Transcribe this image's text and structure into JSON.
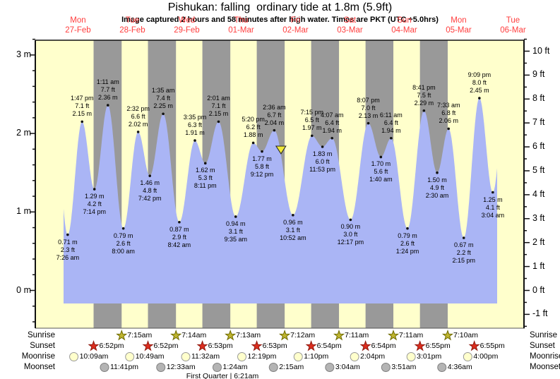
{
  "header": {
    "title": "Pishukan: falling  ordinary tide at 1.8m (5.9ft)",
    "subtitle": "Image captured 2 hours and 58 minutes after high water. Times are PKT (UTC +5.0hrs)"
  },
  "days": [
    {
      "name": "Mon",
      "date": "27-Feb"
    },
    {
      "name": "Tue",
      "date": "28-Feb"
    },
    {
      "name": "Wed",
      "date": "29-Feb"
    },
    {
      "name": "Thu",
      "date": "01-Mar"
    },
    {
      "name": "Fri",
      "date": "02-Mar"
    },
    {
      "name": "Sat",
      "date": "03-Mar"
    },
    {
      "name": "Sun",
      "date": "04-Mar"
    },
    {
      "name": "Mon",
      "date": "05-Mar"
    },
    {
      "name": "Tue",
      "date": "06-Mar"
    }
  ],
  "axes": {
    "left_ticks": [
      {
        "m": 3,
        "label": "3 m"
      },
      {
        "m": 2,
        "label": "2 m"
      },
      {
        "m": 1,
        "label": "1 m"
      },
      {
        "m": 0,
        "label": "0 m"
      }
    ],
    "right_ticks": [
      {
        "ft": 10,
        "label": "10 ft"
      },
      {
        "ft": 9,
        "label": "9 ft"
      },
      {
        "ft": 8,
        "label": "8 ft"
      },
      {
        "ft": 7,
        "label": "7 ft"
      },
      {
        "ft": 6,
        "label": "6 ft"
      },
      {
        "ft": 5,
        "label": "5 ft"
      },
      {
        "ft": 4,
        "label": "4 ft"
      },
      {
        "ft": 3,
        "label": "3 ft"
      },
      {
        "ft": 2,
        "label": "2 ft"
      },
      {
        "ft": 1,
        "label": "1 ft"
      },
      {
        "ft": 0,
        "label": "0 ft"
      },
      {
        "ft": -1,
        "label": "-1 ft"
      }
    ]
  },
  "chart_data": {
    "type": "area",
    "title": "Pishukan: falling  ordinary tide at 1.8m (5.9ft)",
    "series_name": "tide height",
    "units": [
      "m",
      "ft"
    ],
    "ylim_m": [
      -0.5,
      3.2
    ],
    "tide_points": [
      {
        "day": 0,
        "time": "7:26 am",
        "kind": "low",
        "m": 0.71,
        "m_label": "0.71 m",
        "ft_label": "2.3 ft"
      },
      {
        "day": 0,
        "time": "1:47 pm",
        "kind": "high",
        "m": 2.15,
        "m_label": "2.15 m",
        "ft_label": "7.1 ft"
      },
      {
        "day": 0,
        "time": "7:14 pm",
        "kind": "low",
        "m": 1.29,
        "m_label": "1.29 m",
        "ft_label": "4.2 ft"
      },
      {
        "day": 1,
        "time": "1:11 am",
        "kind": "high",
        "m": 2.36,
        "m_label": "2.36 m",
        "ft_label": "7.7 ft"
      },
      {
        "day": 1,
        "time": "8:00 am",
        "kind": "low",
        "m": 0.79,
        "m_label": "0.79 m",
        "ft_label": "2.6 ft"
      },
      {
        "day": 1,
        "time": "2:32 pm",
        "kind": "high",
        "m": 2.02,
        "m_label": "2.02 m",
        "ft_label": "6.6 ft"
      },
      {
        "day": 1,
        "time": "7:42 pm",
        "kind": "low",
        "m": 1.46,
        "m_label": "1.46 m",
        "ft_label": "4.8 ft"
      },
      {
        "day": 2,
        "time": "1:35 am",
        "kind": "high",
        "m": 2.25,
        "m_label": "2.25 m",
        "ft_label": "7.4 ft"
      },
      {
        "day": 2,
        "time": "8:42 am",
        "kind": "low",
        "m": 0.87,
        "m_label": "0.87 m",
        "ft_label": "2.9 ft"
      },
      {
        "day": 2,
        "time": "3:35 pm",
        "kind": "high",
        "m": 1.91,
        "m_label": "1.91 m",
        "ft_label": "6.3 ft"
      },
      {
        "day": 2,
        "time": "8:11 pm",
        "kind": "low",
        "m": 1.62,
        "m_label": "1.62 m",
        "ft_label": "5.3 ft"
      },
      {
        "day": 3,
        "time": "2:01 am",
        "kind": "high",
        "m": 2.15,
        "m_label": "2.15 m",
        "ft_label": "7.1 ft"
      },
      {
        "day": 3,
        "time": "9:35 am",
        "kind": "low",
        "m": 0.94,
        "m_label": "0.94 m",
        "ft_label": "3.1 ft"
      },
      {
        "day": 3,
        "time": "5:20 pm",
        "kind": "high",
        "m": 1.88,
        "m_label": "1.88 m",
        "ft_label": "6.2 ft"
      },
      {
        "day": 3,
        "time": "9:12 pm",
        "kind": "low",
        "m": 1.77,
        "m_label": "1.77 m",
        "ft_label": "5.8 ft"
      },
      {
        "day": 4,
        "time": "2:36 am",
        "kind": "high",
        "m": 2.04,
        "m_label": "2.04 m",
        "ft_label": "6.7 ft"
      },
      {
        "day": 4,
        "time": "10:52 am",
        "kind": "low",
        "m": 0.96,
        "m_label": "0.96 m",
        "ft_label": "3.1 ft"
      },
      {
        "day": 4,
        "time": "7:15 pm",
        "kind": "high",
        "m": 1.97,
        "m_label": "1.97 m",
        "ft_label": "6.5 ft"
      },
      {
        "day": 4,
        "time": "11:53 pm",
        "kind": "low",
        "m": 1.83,
        "m_label": "1.83 m",
        "ft_label": "6.0 ft"
      },
      {
        "day": 5,
        "time": "4:07 am",
        "kind": "high",
        "m": 1.94,
        "m_label": "1.94 m",
        "ft_label": "6.4 ft"
      },
      {
        "day": 5,
        "time": "12:17 pm",
        "kind": "low",
        "m": 0.9,
        "m_label": "0.90 m",
        "ft_label": "3.0 ft"
      },
      {
        "day": 5,
        "time": "8:07 pm",
        "kind": "high",
        "m": 2.13,
        "m_label": "2.13 m",
        "ft_label": "7.0 ft"
      },
      {
        "day": 6,
        "time": "1:40 am",
        "kind": "low",
        "m": 1.7,
        "m_label": "1.70 m",
        "ft_label": "5.6 ft"
      },
      {
        "day": 6,
        "time": "6:11 am",
        "kind": "high",
        "m": 1.94,
        "m_label": "1.94 m",
        "ft_label": "6.4 ft"
      },
      {
        "day": 6,
        "time": "1:24 pm",
        "kind": "low",
        "m": 0.79,
        "m_label": "0.79 m",
        "ft_label": "2.6 ft"
      },
      {
        "day": 6,
        "time": "8:41 pm",
        "kind": "high",
        "m": 2.29,
        "m_label": "2.29 m",
        "ft_label": "7.5 ft"
      },
      {
        "day": 7,
        "time": "2:30 am",
        "kind": "low",
        "m": 1.5,
        "m_label": "1.50 m",
        "ft_label": "4.9 ft"
      },
      {
        "day": 7,
        "time": "7:33 am",
        "kind": "high",
        "m": 2.06,
        "m_label": "2.06 m",
        "ft_label": "6.8 ft"
      },
      {
        "day": 7,
        "time": "2:15 pm",
        "kind": "low",
        "m": 0.67,
        "m_label": "0.67 m",
        "ft_label": "2.2 ft"
      },
      {
        "day": 7,
        "time": "9:09 pm",
        "kind": "high",
        "m": 2.45,
        "m_label": "2.45 m",
        "ft_label": "8.0 ft"
      },
      {
        "day": 8,
        "time": "3:04 am",
        "kind": "low",
        "m": 1.25,
        "m_label": "1.25 m",
        "ft_label": "4.1 ft"
      }
    ],
    "current_marker": {
      "shape": "triangle-down",
      "day": 4,
      "time": "5:34 am"
    }
  },
  "almanac": {
    "row_labels": [
      "Sunrise",
      "Sunset",
      "Moonrise",
      "Moonset"
    ],
    "sunrise": [
      {
        "day": 1,
        "time": "7:15am"
      },
      {
        "day": 2,
        "time": "7:14am"
      },
      {
        "day": 3,
        "time": "7:13am"
      },
      {
        "day": 4,
        "time": "7:12am"
      },
      {
        "day": 5,
        "time": "7:11am"
      },
      {
        "day": 6,
        "time": "7:11am"
      },
      {
        "day": 7,
        "time": "7:10am"
      }
    ],
    "sunset": [
      {
        "day": 0,
        "time": "6:52pm"
      },
      {
        "day": 1,
        "time": "6:52pm"
      },
      {
        "day": 2,
        "time": "6:53pm"
      },
      {
        "day": 3,
        "time": "6:53pm"
      },
      {
        "day": 4,
        "time": "6:54pm"
      },
      {
        "day": 5,
        "time": "6:54pm"
      },
      {
        "day": 6,
        "time": "6:55pm"
      },
      {
        "day": 7,
        "time": "6:55pm"
      }
    ],
    "moonrise": [
      {
        "day": 0,
        "time": "10:09am"
      },
      {
        "day": 1,
        "time": "10:49am"
      },
      {
        "day": 2,
        "time": "11:32am"
      },
      {
        "day": 3,
        "time": "12:19pm"
      },
      {
        "day": 4,
        "time": "1:10pm"
      },
      {
        "day": 5,
        "time": "2:04pm"
      },
      {
        "day": 6,
        "time": "3:01pm"
      },
      {
        "day": 7,
        "time": "4:00pm"
      }
    ],
    "moonset": [
      {
        "day": 0,
        "time": "11:41pm"
      },
      {
        "day": 2,
        "time": "12:33am"
      },
      {
        "day": 3,
        "time": "1:24am"
      },
      {
        "day": 4,
        "time": "2:15am"
      },
      {
        "day": 5,
        "time": "3:04am"
      },
      {
        "day": 6,
        "time": "3:51am"
      },
      {
        "day": 7,
        "time": "4:36am"
      }
    ],
    "moon_phase": "First Quarter | 6:21am"
  },
  "colors": {
    "daylight_band": "#ffffcc",
    "night_band": "#999999",
    "water": "#aab5f5",
    "day_label": "#ff3d3d",
    "axis": "#111111",
    "point_dot": "#111111",
    "sunrise_star": "#beb42e",
    "sunrise_star_border": "#6e6a00",
    "sunset_star": "#dd2d1e",
    "sunset_star_border": "#8f1a10",
    "moonrise_circle": "#ffffcc",
    "moonrise_circle_border": "#999999",
    "moonset_circle": "#b4b4b4",
    "moonset_circle_border": "#808080",
    "current_marker": "#f0e838"
  }
}
